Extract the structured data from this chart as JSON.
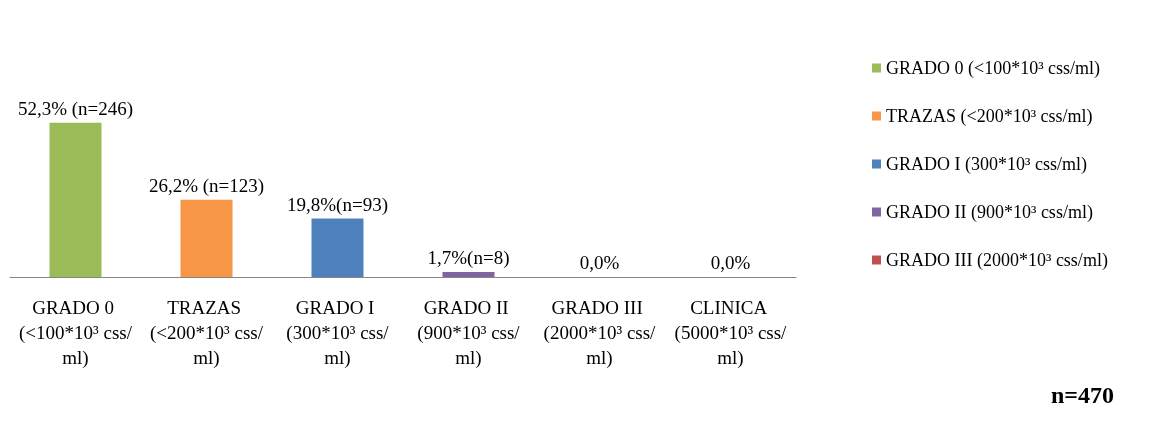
{
  "chart_data": {
    "type": "bar",
    "stacked": true,
    "legend": "right",
    "categories": [
      "GRADO 0 (<100*10³ css/ml)",
      "TRAZAS (<200*10³ css/ml)",
      "GRADO I (300*10³ css/ml)",
      "GRADO II (900*10³ css/ml)",
      "GRADO III (2000*10³ css/ml)",
      "CLINICA (5000*10³ css/ml)"
    ],
    "series": [
      {
        "name": "GRADO 0 (<100*10³ css/ml)",
        "color": "#9bbb59",
        "values": [
          52.3,
          null,
          null,
          null,
          null,
          null
        ],
        "value_labels": [
          "52,3% (n=246)",
          null,
          null,
          null,
          null,
          null
        ]
      },
      {
        "name": "TRAZAS (<200*10³ css/ml)",
        "color": "#f79646",
        "values": [
          null,
          26.2,
          null,
          null,
          null,
          null
        ],
        "value_labels": [
          null,
          "26,2% (n=123)",
          null,
          null,
          null,
          null
        ]
      },
      {
        "name": "GRADO I (300*10³ css/ml)",
        "color": "#4f81bd",
        "values": [
          null,
          null,
          19.8,
          null,
          null,
          null
        ],
        "value_labels": [
          null,
          null,
          "19,8%(n=93)",
          null,
          null,
          null
        ]
      },
      {
        "name": "GRADO II (900*10³ css/ml)",
        "color": "#8064a2",
        "values": [
          null,
          null,
          null,
          1.7,
          null,
          null
        ],
        "value_labels": [
          null,
          null,
          null,
          "1,7%(n=8)",
          null,
          null
        ]
      },
      {
        "name": "GRADO III (2000*10³ css/ml)",
        "color": "#c0504d",
        "values": [
          null,
          null,
          null,
          null,
          0,
          null
        ],
        "value_labels": [
          null,
          null,
          null,
          null,
          "0,0%",
          null
        ]
      },
      {
        "values": [
          null,
          null,
          null,
          null,
          null,
          0
        ],
        "value_labels": [
          null,
          null,
          null,
          null,
          null,
          "0,0%"
        ]
      }
    ],
    "annotations": [
      "n=470"
    ]
  }
}
